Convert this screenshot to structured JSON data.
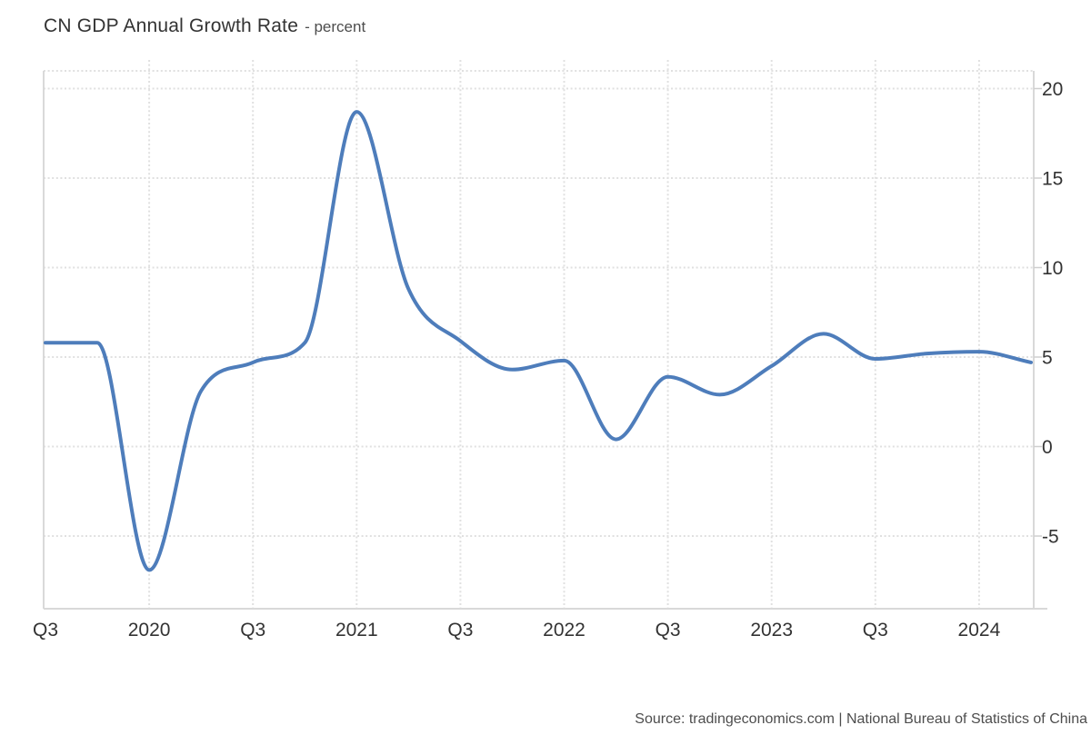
{
  "title": {
    "main": "CN GDP Annual Growth Rate",
    "subtitle": "- percent"
  },
  "source": "Source: tradingeconomics.com | National Bureau of Statistics of China",
  "colors": {
    "line": "#4e7dbb",
    "grid": "#e0e0e0",
    "axis": "#d9d9d9",
    "label": "#333333",
    "background": "#ffffff"
  },
  "chart_data": {
    "type": "line",
    "style": "smooth-spline",
    "title": "CN GDP Annual Growth Rate",
    "unit": "percent",
    "xlabel": "",
    "ylabel": "percent",
    "grid": "dotted",
    "legend": "none",
    "x": [
      "2019-Q3",
      "2019-Q4",
      "2020-Q1",
      "2020-Q2",
      "2020-Q3",
      "2020-Q4",
      "2021-Q1",
      "2021-Q2",
      "2021-Q3",
      "2021-Q4",
      "2022-Q1",
      "2022-Q2",
      "2022-Q3",
      "2022-Q4",
      "2023-Q1",
      "2023-Q2",
      "2023-Q3",
      "2023-Q4",
      "2024-Q1",
      "2024-Q2"
    ],
    "series": [
      {
        "name": "CN GDP Annual Growth Rate",
        "values": [
          5.8,
          5.8,
          -6.9,
          3.1,
          4.7,
          5.8,
          18.7,
          8.8,
          5.9,
          4.3,
          4.8,
          0.4,
          3.9,
          2.9,
          4.5,
          6.3,
          4.9,
          5.2,
          5.3,
          4.7
        ]
      }
    ],
    "x_tick_labels": [
      "Q3",
      "2020",
      "Q3",
      "2021",
      "Q3",
      "2022",
      "Q3",
      "2023",
      "Q3",
      "2024"
    ],
    "y_ticks": [
      20,
      15,
      10,
      5,
      0,
      -5
    ],
    "ylim": [
      -9.1,
      21.0
    ],
    "y_axis_position": "right"
  }
}
